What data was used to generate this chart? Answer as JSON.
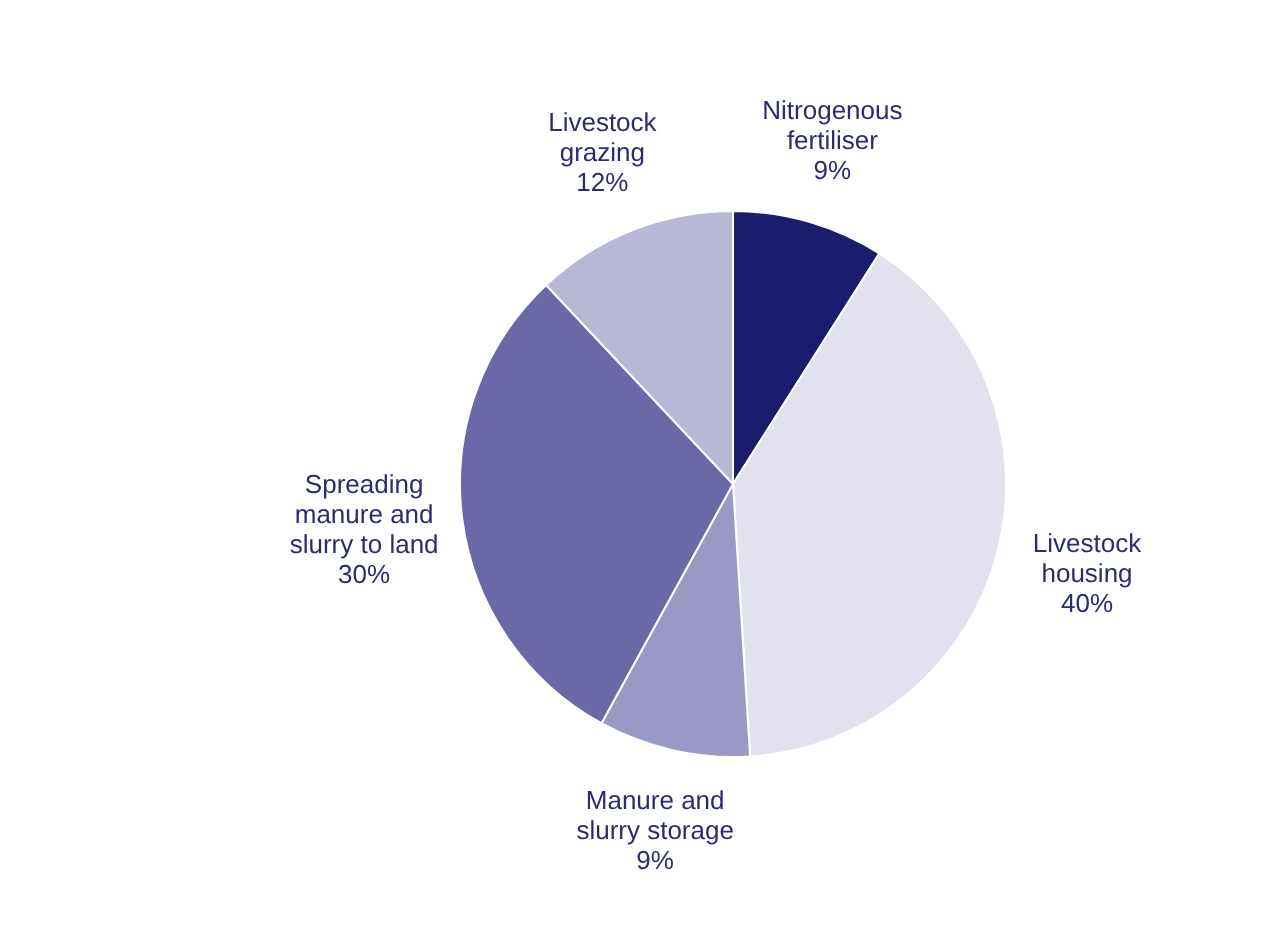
{
  "chart_data": {
    "type": "pie",
    "categories": [
      "Nitrogenous fertiliser",
      "Livestock housing",
      "Manure and slurry storage",
      "Spreading manure and slurry to land",
      "Livestock grazing"
    ],
    "values": [
      9,
      40,
      9,
      30,
      12
    ],
    "colors": [
      "#1c1c6c",
      "#e2e2ee",
      "#9a99c6",
      "#6a68a6",
      "#b8b7d6"
    ],
    "value_labels": [
      "9%",
      "40%",
      "9%",
      "30%",
      "12%"
    ],
    "legend": false
  }
}
